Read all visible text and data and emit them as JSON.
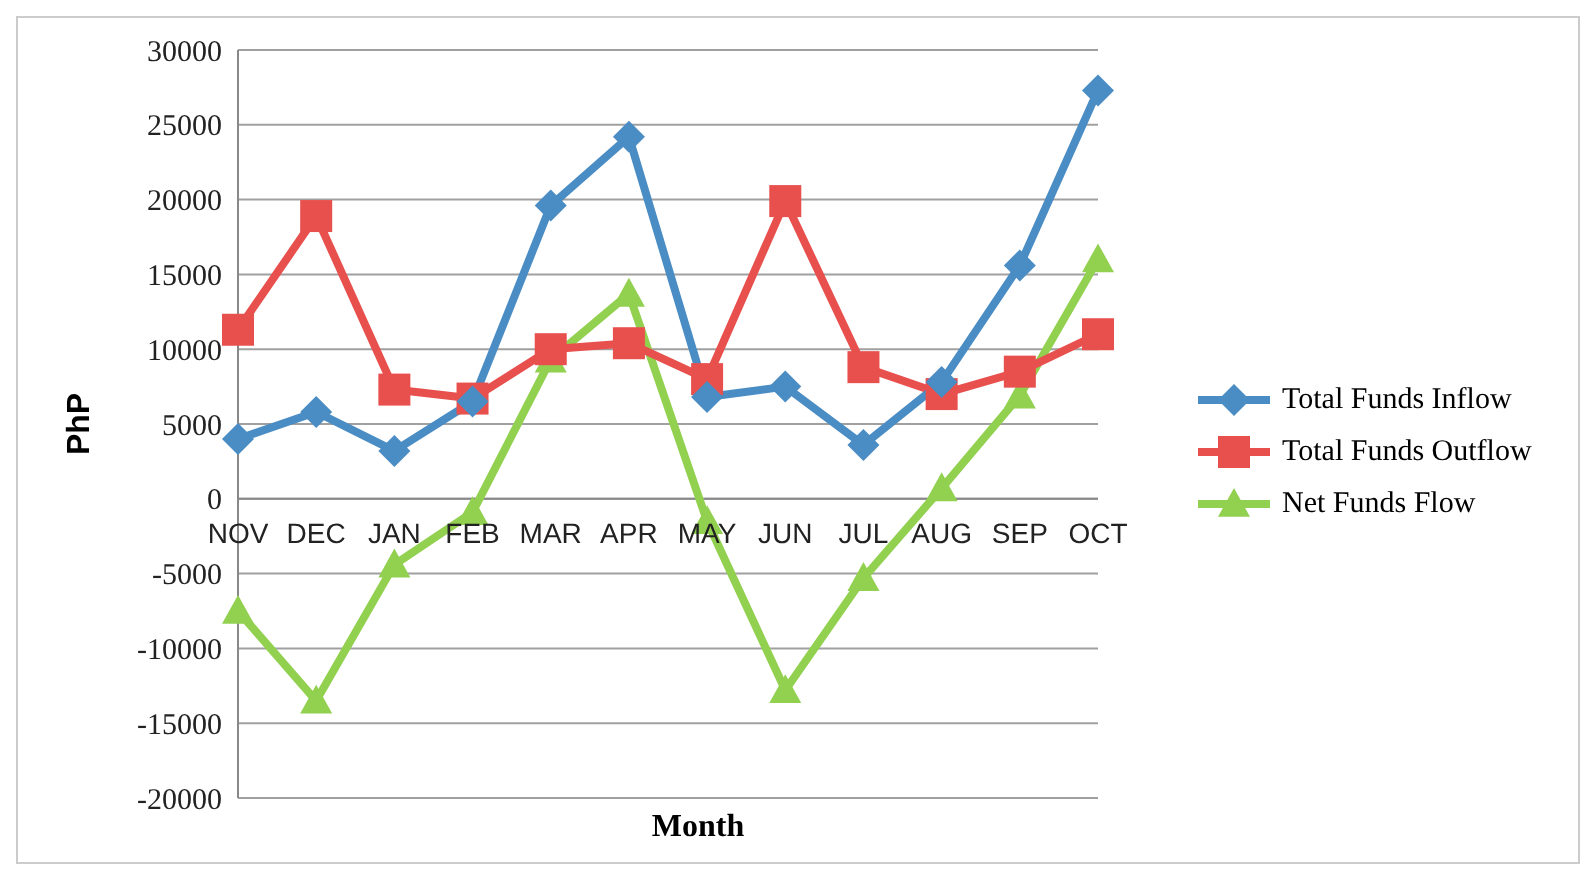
{
  "chart_data": {
    "type": "line",
    "xlabel": "Month",
    "ylabel": "PhP",
    "categories": [
      "NOV",
      "DEC",
      "JAN",
      "FEB",
      "MAR",
      "APR",
      "MAY",
      "JUN",
      "JUL",
      "AUG",
      "SEP",
      "OCT"
    ],
    "series": [
      {
        "name": "Total Funds Inflow",
        "color": "#4a8cc4",
        "marker": "diamond",
        "values": [
          4000,
          5800,
          3200,
          6500,
          19600,
          24200,
          6800,
          7500,
          3600,
          7800,
          15600,
          27300
        ]
      },
      {
        "name": "Total Funds Outflow",
        "color": "#e8504e",
        "marker": "square",
        "values": [
          11300,
          18900,
          7300,
          6700,
          10000,
          10400,
          8000,
          19900,
          8800,
          7000,
          8500,
          11000
        ]
      },
      {
        "name": "Net Funds Flow",
        "color": "#92d050",
        "marker": "triangle",
        "values": [
          -7500,
          -13500,
          -4400,
          -900,
          9300,
          13700,
          -1500,
          -12800,
          -5300,
          700,
          6900,
          16000
        ]
      }
    ],
    "ylim": [
      -20000,
      30000
    ],
    "yticks": [
      -20000,
      -15000,
      -10000,
      -5000,
      0,
      5000,
      10000,
      15000,
      20000,
      25000,
      30000
    ],
    "grid": "y",
    "legend": "right"
  }
}
